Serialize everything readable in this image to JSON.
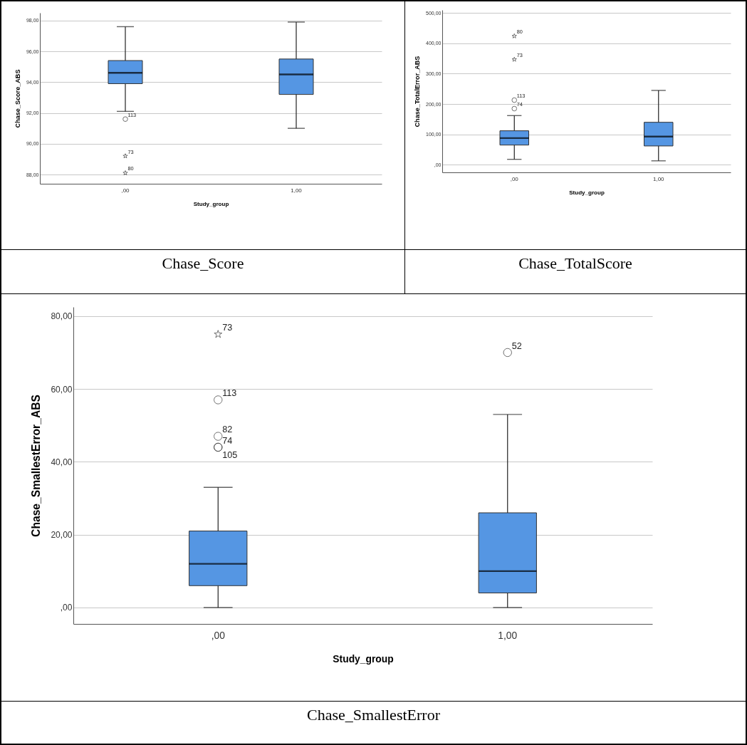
{
  "chart_data": [
    {
      "type": "box",
      "xlabel": "Study_group",
      "ylabel": "Chase_Score_ABS",
      "categories": [
        ",00",
        "1,00"
      ],
      "ylim": [
        87.4,
        98.5
      ],
      "yticks": [
        {
          "value": 88,
          "label": "88,00"
        },
        {
          "value": 90,
          "label": "90,00"
        },
        {
          "value": 92,
          "label": "92,00"
        },
        {
          "value": 94,
          "label": "94,00"
        },
        {
          "value": 96,
          "label": "96,00"
        },
        {
          "value": 98,
          "label": "98,00"
        }
      ],
      "grid": "y",
      "marker": "circle",
      "series": [
        {
          "color": "#5596e3",
          "boxes": [
            {
              "low": 92.1,
              "q1": 93.9,
              "median": 94.6,
              "q3": 95.4,
              "high": 97.6,
              "outliers": [
                91.6,
                89.2,
                88.1
              ]
            },
            {
              "low": 91.0,
              "q1": 93.2,
              "median": 94.5,
              "q3": 95.5,
              "high": 97.9
            }
          ]
        }
      ],
      "annotations": [
        "113",
        "73",
        "80",
        "Chase_Score"
      ]
    },
    {
      "type": "box",
      "xlabel": "Study_group",
      "ylabel": "Chase_TotalError_ABS",
      "categories": [
        ",00",
        "1,00"
      ],
      "ylim": [
        -25,
        510
      ],
      "yticks": [
        {
          "value": 0,
          "label": ",00"
        },
        {
          "value": 100,
          "label": "100,00"
        },
        {
          "value": 200,
          "label": "200,00"
        },
        {
          "value": 300,
          "label": "300,00"
        },
        {
          "value": 400,
          "label": "400,00"
        },
        {
          "value": 500,
          "label": "500,00"
        }
      ],
      "grid": "y",
      "marker": "circle",
      "series": [
        {
          "color": "#5596e3",
          "boxes": [
            {
              "low": 18,
              "q1": 65,
              "median": 88,
              "q3": 112,
              "high": 162,
              "outliers": [
                185,
                213,
                347,
                424
              ]
            },
            {
              "low": 13,
              "q1": 62,
              "median": 93,
              "q3": 140,
              "high": 245
            }
          ]
        }
      ],
      "annotations": [
        "74",
        "113",
        "73",
        "80",
        "Chase_TotalScore"
      ]
    },
    {
      "type": "box",
      "xlabel": "Study_group",
      "ylabel": "Chase_SmallestError_ABS",
      "categories": [
        ",00",
        "1,00"
      ],
      "ylim": [
        -4.5,
        82.5
      ],
      "yticks": [
        {
          "value": 0,
          "label": ",00"
        },
        {
          "value": 20,
          "label": "20,00"
        },
        {
          "value": 40,
          "label": "40,00"
        },
        {
          "value": 60,
          "label": "60,00"
        },
        {
          "value": 80,
          "label": "80,00"
        }
      ],
      "grid": "y",
      "marker": "circle",
      "series": [
        {
          "color": "#5596e3",
          "boxes": [
            {
              "low": 0,
              "q1": 6,
              "median": 12,
              "q3": 21,
              "high": 33,
              "outliers": [
                75,
                57,
                47,
                44,
                44
              ]
            },
            {
              "low": 0,
              "q1": 4,
              "median": 10,
              "q3": 26,
              "high": 53,
              "outliers": [
                70
              ]
            }
          ]
        }
      ],
      "annotations": [
        "73",
        "113",
        "82",
        "74",
        "105",
        "52",
        "Chase_SmallestError"
      ]
    }
  ]
}
